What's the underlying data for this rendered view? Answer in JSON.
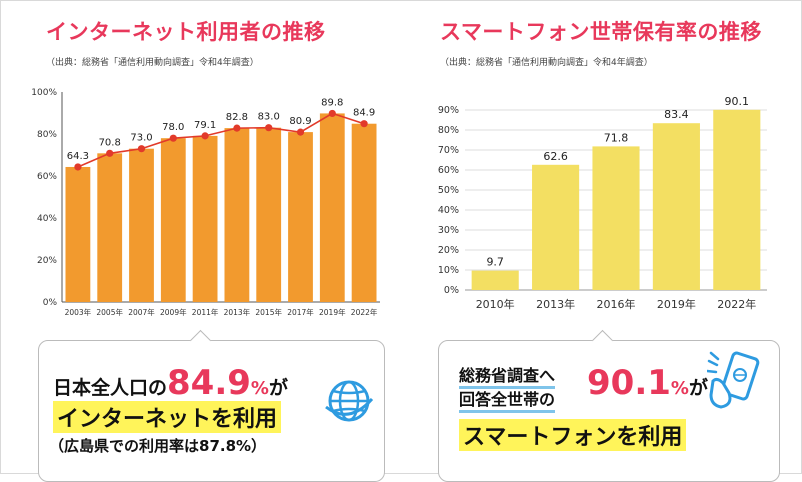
{
  "colors": {
    "accent": "#e8385b",
    "orange_bar": "#f29a2e",
    "yellow_bar": "#f3df62",
    "line_red": "#e23a2a",
    "highlight": "#fff45a",
    "blue_icon": "#2e9be0"
  },
  "left": {
    "title": "インターネット利用者の推移",
    "source": "（出典：総務省「通信利用動向調査」令和4年調査）",
    "callout": {
      "line1_prefix": "日本全人口の",
      "big_value": "84.9",
      "pct": "%",
      "line1_suffix": "が",
      "highlight": "インターネットを利用",
      "note": "（広島県での利用率は87.8%）",
      "icon": "globe-icon"
    }
  },
  "right": {
    "title": "スマートフォン世帯保有率の推移",
    "source": "（出典：総務省「通信利用動向調査」令和4年調査）",
    "callout": {
      "line_a": "総務省調査へ",
      "line_b": "回答全世帯の",
      "big_value": "90.1",
      "pct": "%",
      "suffix": "が",
      "highlight": "スマートフォンを利用",
      "icon": "smartphone-hand-icon"
    }
  },
  "chart_data": [
    {
      "type": "bar",
      "title": "インターネット利用者の推移",
      "categories": [
        "2003年",
        "2005年",
        "2007年",
        "2009年",
        "2011年",
        "2013年",
        "2015年",
        "2017年",
        "2019年",
        "2022年"
      ],
      "values": [
        64.3,
        70.8,
        73.0,
        78.0,
        79.1,
        82.8,
        83.0,
        80.9,
        89.8,
        84.9
      ],
      "value_labels": [
        "64.3",
        "70.8",
        "73.0",
        "78.0",
        "79.1",
        "82.8",
        "83.0",
        "80.9",
        "89.8",
        "84.9"
      ],
      "overlay_line": true,
      "ylim": [
        0,
        100
      ],
      "yticks": [
        0,
        20,
        40,
        60,
        80,
        100
      ],
      "ytick_labels": [
        "0%",
        "20%",
        "40%",
        "60%",
        "80%",
        "100%"
      ],
      "xlabel": "",
      "ylabel": ""
    },
    {
      "type": "bar",
      "title": "スマートフォン世帯保有率の推移",
      "categories": [
        "2010年",
        "2013年",
        "2016年",
        "2019年",
        "2022年"
      ],
      "values": [
        9.7,
        62.6,
        71.8,
        83.4,
        90.1
      ],
      "value_labels": [
        "9.7",
        "62.6",
        "71.8",
        "83.4",
        "90.1"
      ],
      "ylim": [
        0,
        90
      ],
      "yticks": [
        0,
        10,
        20,
        30,
        40,
        50,
        60,
        70,
        80,
        90
      ],
      "ytick_labels": [
        "0%",
        "10%",
        "20%",
        "30%",
        "40%",
        "50%",
        "60%",
        "70%",
        "80%",
        "90%"
      ],
      "grid": true,
      "xlabel": "",
      "ylabel": ""
    }
  ]
}
